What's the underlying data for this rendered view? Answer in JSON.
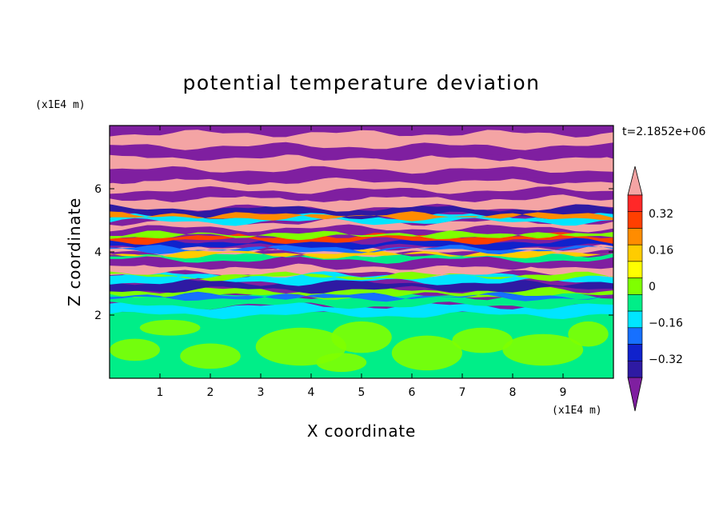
{
  "chart_data": {
    "type": "heatmap",
    "title": "potential temperature deviation",
    "xlabel": "X coordinate",
    "ylabel": "Z coordinate",
    "x_unit": "(x1E4 m)",
    "y_unit": "(x1E4 m)",
    "time_label": "t=2.1852e+06",
    "xlim": [
      0,
      10
    ],
    "ylim": [
      0,
      8
    ],
    "x_ticks": [
      "1",
      "2",
      "3",
      "4",
      "5",
      "6",
      "7",
      "8",
      "9"
    ],
    "y_ticks": [
      "2",
      "4",
      "6"
    ],
    "grid": false,
    "legend": "colorbar right",
    "colorbar": {
      "levels": [
        -0.48,
        -0.4,
        -0.32,
        -0.24,
        -0.16,
        -0.08,
        0,
        0.08,
        0.16,
        0.24,
        0.32,
        0.4,
        0.48
      ],
      "tick_labels": [
        "0.32",
        "0.16",
        "0",
        "−0.16",
        "−0.32"
      ],
      "tick_values": [
        0.32,
        0.16,
        0,
        -0.16,
        -0.32
      ],
      "colors": [
        "#7f1fa0",
        "#2e1aa3",
        "#1022cc",
        "#1670ff",
        "#00e5ff",
        "#00ee88",
        "#7fff00",
        "#ffff00",
        "#ffcc00",
        "#ff8c00",
        "#ff3f00",
        "#ff2828",
        "#f4a4a4"
      ]
    }
  }
}
